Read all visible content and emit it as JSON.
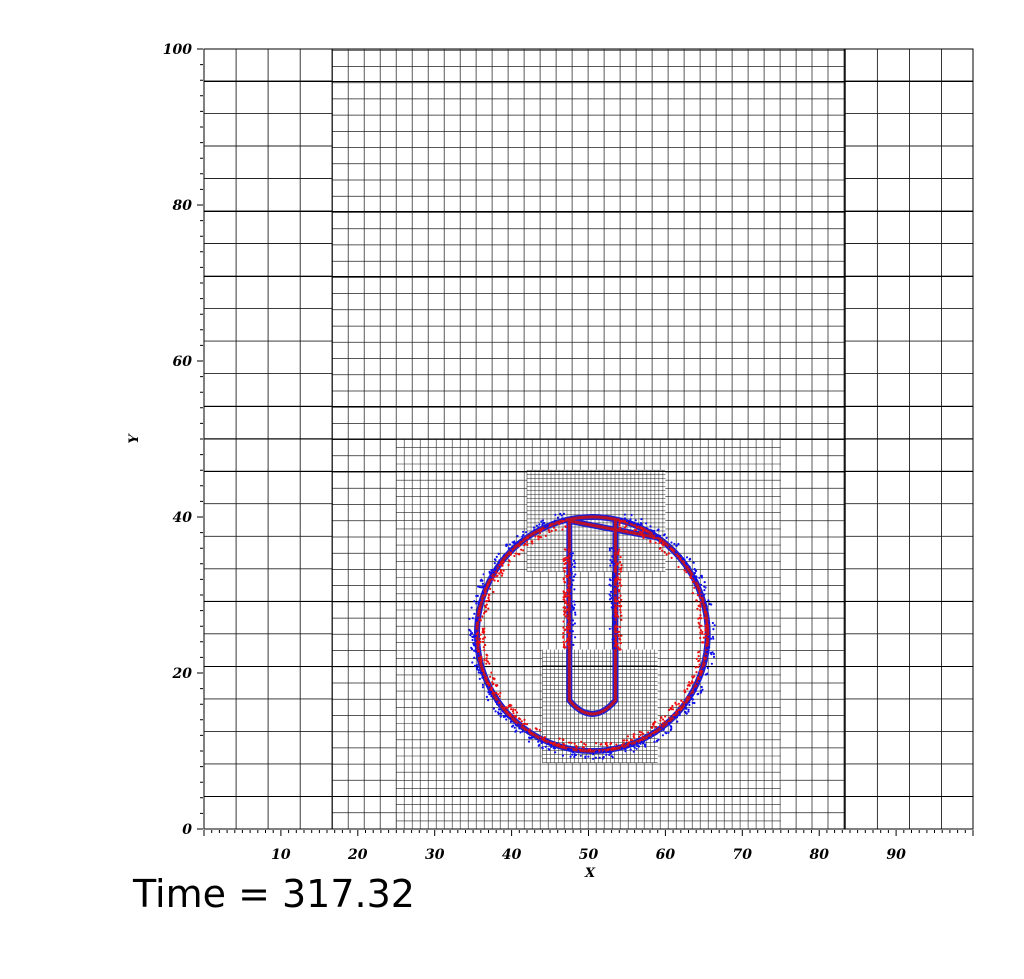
{
  "chart_data": {
    "type": "scatter",
    "title": "",
    "xlabel": "X",
    "ylabel": "Y",
    "xlim": [
      0,
      100
    ],
    "ylim": [
      0,
      100
    ],
    "xticks": [
      "10",
      "20",
      "30",
      "40",
      "50",
      "60",
      "70",
      "80",
      "90"
    ],
    "yticks": [
      "0",
      "20",
      "40",
      "60",
      "80",
      "100"
    ],
    "grid": true,
    "mesh_refinement_levels": [
      {
        "level": 0,
        "x": [
          0,
          100
        ],
        "y": [
          0,
          100
        ],
        "spacing": 4.17
      },
      {
        "level": 1,
        "x": [
          16.67,
          83.33
        ],
        "y": [
          0,
          100
        ],
        "spacing": 2.08
      },
      {
        "level": 2,
        "x": [
          25,
          75
        ],
        "y": [
          0,
          50
        ],
        "spacing": 1.04
      },
      {
        "level": 3,
        "x": [
          42,
          60
        ],
        "y": [
          33,
          46
        ],
        "spacing": 0.52
      },
      {
        "level": 3,
        "x": [
          44,
          59
        ],
        "y": [
          8.5,
          23
        ],
        "spacing": 0.52
      }
    ],
    "series": [
      {
        "color": "#1010ee",
        "points": "scattered interface markers"
      },
      {
        "color": "#ee1010",
        "points": "scattered interface markers"
      }
    ],
    "interface_curve": {
      "color": "#b8122a",
      "shape": "slotted disk",
      "center": [
        50.5,
        25
      ],
      "radius": 15,
      "slot_x": [
        47.5,
        53.5
      ],
      "slot_bottom_y": 14.5,
      "slot_top_y": 39.5
    }
  },
  "annotation": {
    "time_label": "Time = 317.32"
  }
}
